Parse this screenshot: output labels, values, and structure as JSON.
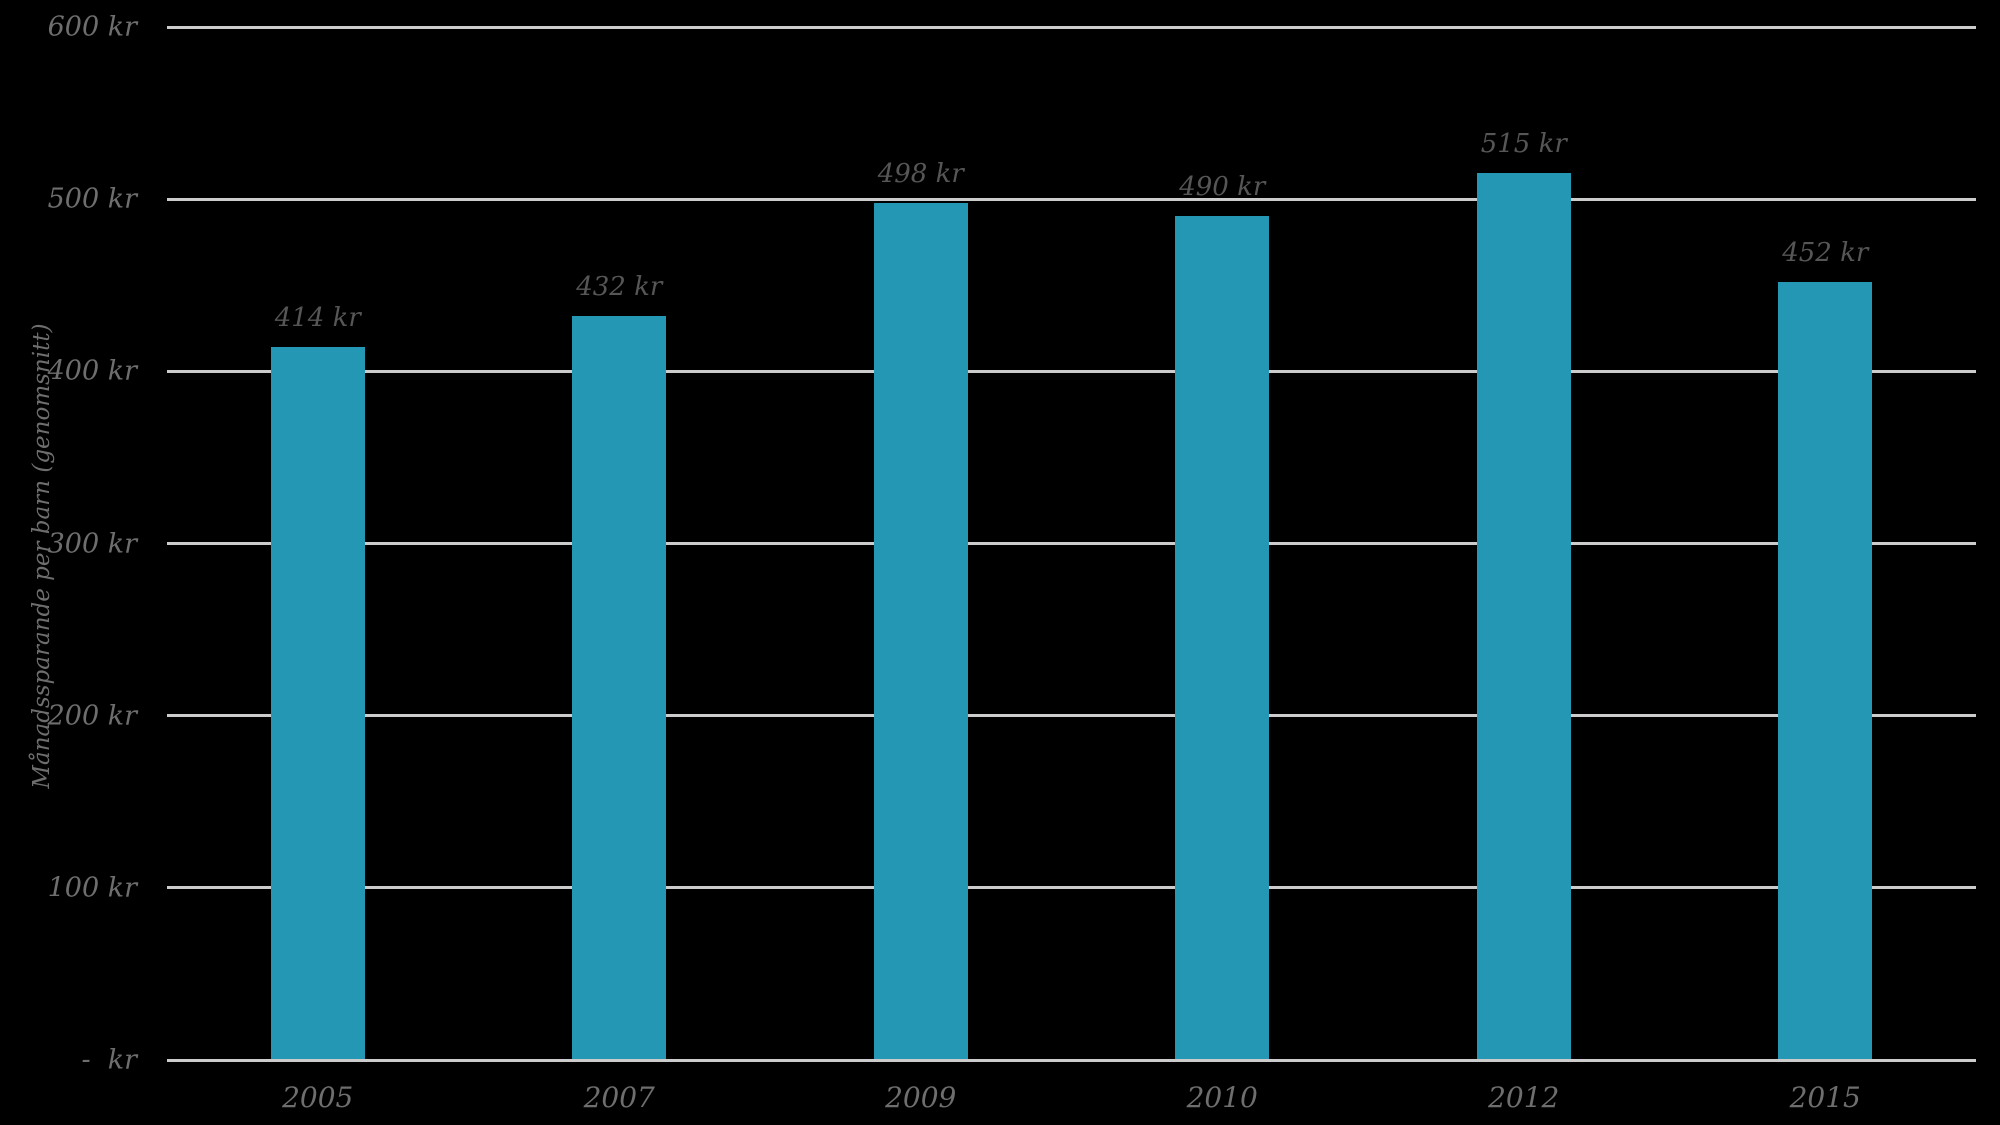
{
  "colors": {
    "background": "#000000",
    "bar": "#2397b4",
    "gridline": "#cccccc",
    "tick_text": "#6e6e6e",
    "label_text": "#565656"
  },
  "chart_data": {
    "type": "bar",
    "title": "",
    "xlabel": "",
    "ylabel": "Månadssparande per barn (genomsnitt)",
    "categories": [
      "2005",
      "2007",
      "2009",
      "2010",
      "2012",
      "2015"
    ],
    "values": [
      414,
      432,
      498,
      490,
      515,
      452
    ],
    "bar_labels": [
      "414 kr",
      "432 kr",
      "498 kr",
      "490 kr",
      "515 kr",
      "452 kr"
    ],
    "unit": "kr",
    "ylim": [
      0,
      600
    ],
    "yticks": [
      {
        "value": 600,
        "label": "600 kr"
      },
      {
        "value": 500,
        "label": "500 kr"
      },
      {
        "value": 400,
        "label": "400 kr"
      },
      {
        "value": 300,
        "label": "300 kr"
      },
      {
        "value": 200,
        "label": "200 kr"
      },
      {
        "value": 100,
        "label": "100 kr"
      },
      {
        "value": 0,
        "label": "-  kr"
      }
    ],
    "grid": true,
    "legend": false,
    "bar_color": "#2397b4"
  }
}
